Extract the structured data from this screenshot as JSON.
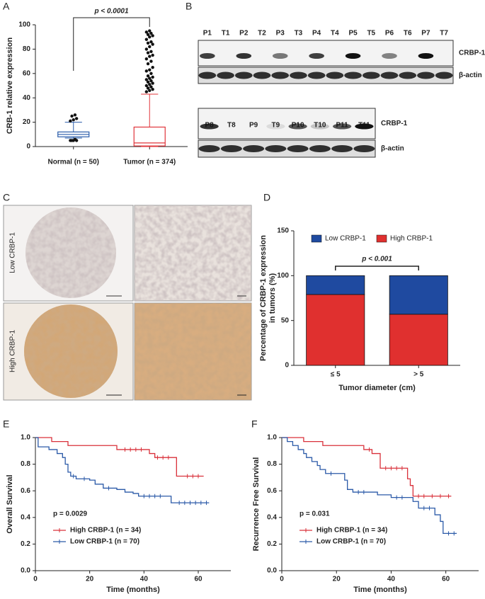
{
  "panel_labels": [
    "A",
    "B",
    "C",
    "D",
    "E",
    "F"
  ],
  "blots": [
    {
      "lanes": [
        "P1",
        "T1",
        "P2",
        "T2",
        "P3",
        "T3",
        "P4",
        "T4",
        "P5",
        "T5",
        "P6",
        "T6",
        "P7",
        "T7"
      ],
      "bands": [
        "CRBP-1",
        "β-actin"
      ]
    },
    {
      "lanes": [
        "P8",
        "T8",
        "P9",
        "T9",
        "P10",
        "T10",
        "P11",
        "T11"
      ],
      "bands": [
        "CRBP-1",
        "β-actin"
      ]
    }
  ],
  "ihc": {
    "rows": [
      "Low CRBP-1",
      "High CRBP-1"
    ]
  },
  "chart_data": [
    {
      "type": "box",
      "ylabel": "CRB-1 relative expression",
      "annotation": "p < 0.0001",
      "categories": [
        "Normal (n = 50)",
        "Tumor (n = 374)"
      ],
      "colors": [
        "#2a5caa",
        "#e0353b"
      ],
      "boxes": [
        {
          "min": 7,
          "q1": 8,
          "median": 10,
          "q3": 12,
          "max": 20,
          "outliers": [
            21,
            22,
            23,
            25,
            26,
            5,
            5,
            5,
            5,
            6
          ]
        },
        {
          "min": 0,
          "q1": 0.5,
          "median": 3,
          "q3": 16,
          "max": 43,
          "outliers": [
            45,
            46,
            47,
            48,
            49,
            50,
            51,
            52,
            53,
            54,
            55,
            56,
            57,
            58,
            60,
            62,
            63,
            65,
            68,
            70,
            72,
            74,
            75,
            77,
            78,
            80,
            82,
            84,
            85,
            86,
            88,
            90,
            91,
            92,
            93,
            94,
            95
          ]
        }
      ],
      "ylim": [
        0,
        100
      ],
      "yticks": [
        0,
        20,
        40,
        60,
        80,
        100
      ]
    },
    {
      "type": "bar",
      "stacked": true,
      "ylabel": [
        "Percentage of CRBP-1 expression",
        "in tumors (%)"
      ],
      "xlabel": "Tumor diameter (cm)",
      "annotation": "p < 0.001",
      "legend": "top",
      "categories": [
        "≤ 5",
        "> 5"
      ],
      "series": [
        {
          "name": "High CRBP-1",
          "color": "#e0302f",
          "values": [
            79,
            57
          ]
        },
        {
          "name": "Low CRBP-1",
          "color": "#1f4aa0",
          "values": [
            21,
            43
          ]
        }
      ],
      "ylim": [
        0,
        150
      ],
      "yticks": [
        0,
        50,
        100,
        150
      ]
    },
    {
      "type": "line",
      "drawstyle": "steps-post",
      "ylabel": "Overall Survival",
      "xlabel": "Time (months)",
      "annotation": "p = 0.0029",
      "legend": "lower left",
      "xlim": [
        0,
        72
      ],
      "xticks": [
        0,
        20,
        40,
        60
      ],
      "ylim": [
        0,
        1
      ],
      "yticks": [
        {
          "value": 0,
          "label": "0.0"
        },
        0.2,
        0.4,
        0.6,
        0.8,
        {
          "value": 1,
          "label": "1.0"
        }
      ],
      "series": [
        {
          "name": "High CRBP-1 (n = 34)",
          "color": "#d9303a",
          "x": [
            0,
            6,
            12,
            30,
            42,
            44,
            52,
            62
          ],
          "values": [
            1,
            0.97,
            0.94,
            0.91,
            0.88,
            0.85,
            0.71,
            0.71
          ],
          "censor_x": [
            33,
            35,
            37,
            39,
            45,
            47,
            49,
            56,
            58,
            60
          ],
          "censor_y": [
            0.91,
            0.91,
            0.91,
            0.91,
            0.85,
            0.85,
            0.85,
            0.71,
            0.71,
            0.71
          ]
        },
        {
          "name": "Low CRBP-1 (n = 70)",
          "color": "#2b5aa8",
          "x": [
            0,
            1,
            5,
            8,
            10,
            11,
            12,
            13,
            15,
            20,
            22,
            25,
            30,
            33,
            36,
            38,
            50,
            64
          ],
          "values": [
            1,
            0.93,
            0.91,
            0.88,
            0.85,
            0.8,
            0.74,
            0.71,
            0.69,
            0.68,
            0.65,
            0.62,
            0.61,
            0.59,
            0.58,
            0.56,
            0.51,
            0.51
          ],
          "censor_x": [
            14,
            18,
            27,
            40,
            42,
            44,
            46,
            53,
            55,
            57,
            59,
            61,
            63
          ],
          "censor_y": [
            0.71,
            0.69,
            0.62,
            0.56,
            0.56,
            0.56,
            0.56,
            0.51,
            0.51,
            0.51,
            0.51,
            0.51,
            0.51
          ]
        }
      ]
    },
    {
      "type": "line",
      "drawstyle": "steps-post",
      "ylabel": "Recurrence Free Survival",
      "xlabel": "Time (months)",
      "annotation": "p = 0.031",
      "legend": "lower left",
      "xlim": [
        0,
        72
      ],
      "xticks": [
        0,
        20,
        40,
        60
      ],
      "ylim": [
        0,
        1
      ],
      "yticks": [
        {
          "value": 0,
          "label": "0.0"
        },
        0.2,
        0.4,
        0.6,
        0.8,
        {
          "value": 1,
          "label": "1.0"
        }
      ],
      "series": [
        {
          "name": "High CRBP-1 (n = 34)",
          "color": "#d9303a",
          "x": [
            0,
            8,
            15,
            30,
            33,
            36,
            46,
            47,
            48,
            62
          ],
          "values": [
            1,
            0.97,
            0.94,
            0.91,
            0.88,
            0.77,
            0.69,
            0.64,
            0.56,
            0.56
          ],
          "censor_x": [
            32,
            38,
            40,
            42,
            44,
            50,
            52,
            55,
            58,
            61
          ],
          "censor_y": [
            0.91,
            0.77,
            0.77,
            0.77,
            0.77,
            0.56,
            0.56,
            0.56,
            0.56,
            0.56
          ]
        },
        {
          "name": "Low CRBP-1 (n = 70)",
          "color": "#2b5aa8",
          "x": [
            0,
            2,
            4,
            6,
            8,
            9,
            11,
            13,
            14,
            16,
            23,
            24,
            26,
            35,
            40,
            48,
            50,
            56,
            58,
            59,
            64
          ],
          "values": [
            1,
            0.97,
            0.94,
            0.91,
            0.88,
            0.85,
            0.82,
            0.79,
            0.76,
            0.73,
            0.68,
            0.61,
            0.59,
            0.57,
            0.55,
            0.52,
            0.47,
            0.42,
            0.37,
            0.28,
            0.28
          ],
          "censor_x": [
            18,
            28,
            30,
            42,
            44,
            52,
            54,
            61,
            63
          ],
          "censor_y": [
            0.73,
            0.59,
            0.59,
            0.55,
            0.55,
            0.47,
            0.47,
            0.28,
            0.28
          ]
        }
      ]
    }
  ]
}
